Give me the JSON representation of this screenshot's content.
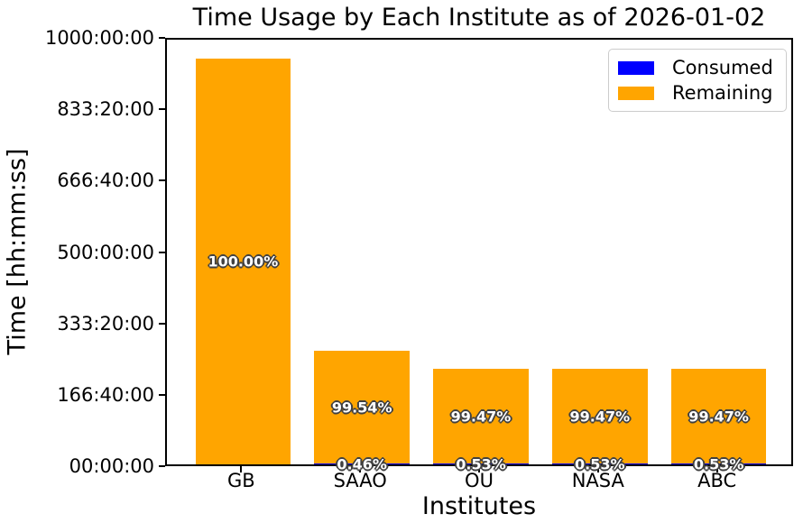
{
  "chart_data": {
    "type": "bar",
    "stacked": true,
    "title": "Time Usage by Each Institute as of 2026-01-02",
    "xlabel": "Institutes",
    "ylabel": "Time [hh:mm:ss]",
    "categories": [
      "GB",
      "SAAO",
      "OU",
      "NASA",
      "ABC"
    ],
    "series": [
      {
        "name": "Consumed",
        "color": "#0000ff",
        "values_hours": [
          0,
          1.22,
          1.18,
          1.18,
          1.18
        ],
        "pct_labels": [
          "",
          "0.46%",
          "0.53%",
          "0.53%",
          "0.53%"
        ]
      },
      {
        "name": "Remaining",
        "color": "#ffa500",
        "values_hours": [
          947.4,
          264.1,
          222.0,
          222.0,
          222.0
        ],
        "pct_labels": [
          "100.00%",
          "99.54%",
          "99.47%",
          "99.47%",
          "99.47%"
        ]
      }
    ],
    "totals_hours": [
      947.4,
      265.3,
      223.2,
      223.2,
      223.2
    ],
    "ylim_hours": [
      0,
      1000
    ],
    "y_ticks": [
      {
        "value": 0,
        "label": "00:00:00"
      },
      {
        "value": 166.6667,
        "label": "166:40:00"
      },
      {
        "value": 333.3333,
        "label": "333:20:00"
      },
      {
        "value": 500,
        "label": "500:00:00"
      },
      {
        "value": 666.6667,
        "label": "666:40:00"
      },
      {
        "value": 833.3333,
        "label": "833:20:00"
      },
      {
        "value": 1000,
        "label": "1000:00:00"
      }
    ],
    "grid": false,
    "legend": {
      "position": "upper right",
      "entries": [
        {
          "label": "Consumed",
          "color": "#0000ff"
        },
        {
          "label": "Remaining",
          "color": "#ffa500"
        }
      ]
    }
  }
}
